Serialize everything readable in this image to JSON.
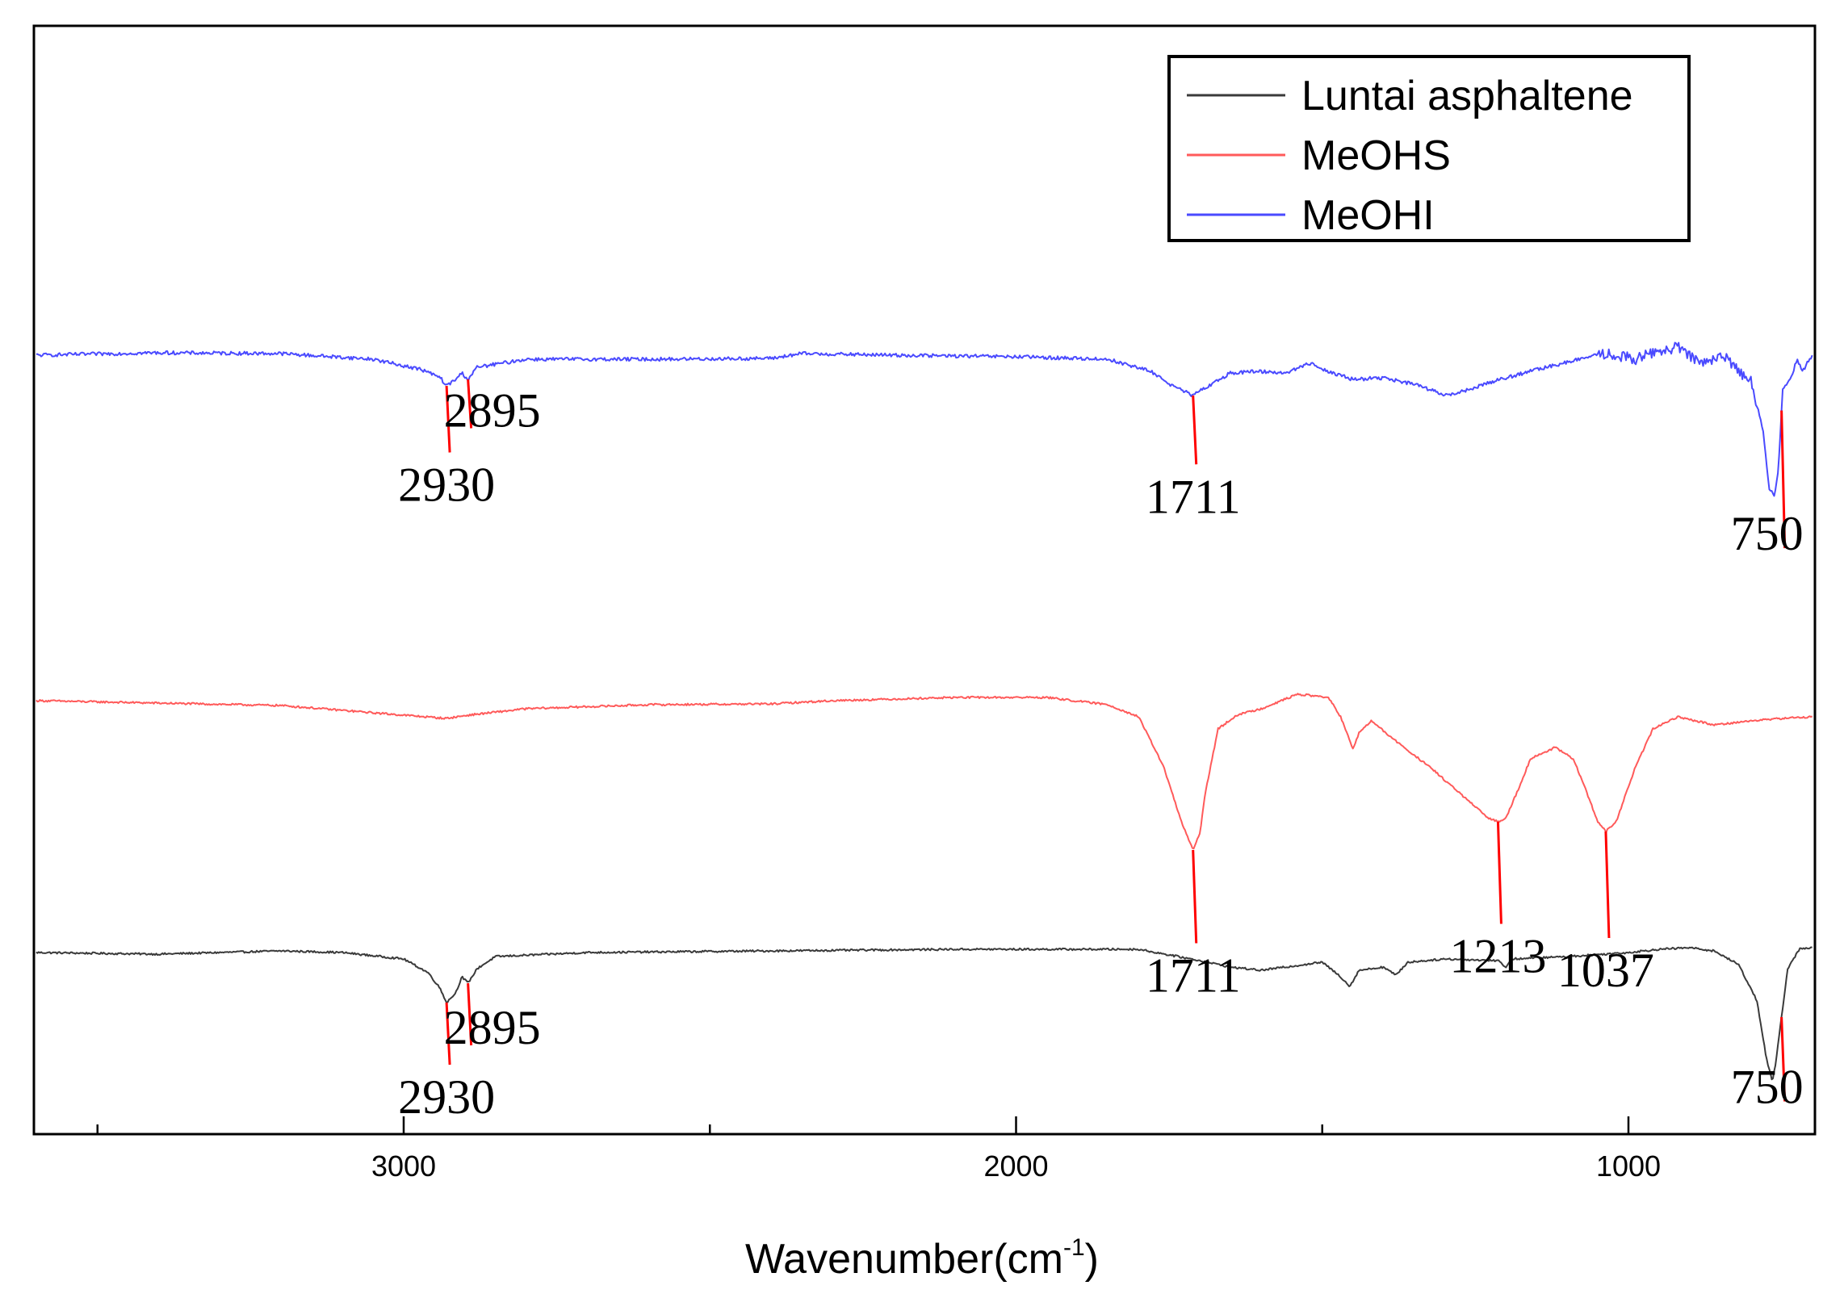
{
  "chart_data": {
    "type": "line",
    "xlabel": "Wavenumber(cm",
    "xlabel_sup": "-1",
    "xlabel_close": ")",
    "xlim": [
      3600,
      700
    ],
    "x_reversed": true,
    "y_axis_visible": false,
    "grid": false,
    "legend_position": "top-right",
    "xticks": [
      {
        "value": 3000,
        "label": "3000"
      },
      {
        "value": 2000,
        "label": "2000"
      },
      {
        "value": 1000,
        "label": "1000"
      }
    ],
    "minor_xticks": [
      3500,
      2500,
      1500
    ],
    "series": [
      {
        "name": "Luntai asphaltene",
        "color": "#3a3a3a",
        "baseline": 1180,
        "points": [
          [
            3600,
            0
          ],
          [
            3400,
            -2
          ],
          [
            3200,
            2
          ],
          [
            3100,
            0
          ],
          [
            3000,
            -8
          ],
          [
            2960,
            -25
          ],
          [
            2940,
            -45
          ],
          [
            2930,
            -62
          ],
          [
            2915,
            -50
          ],
          [
            2905,
            -30
          ],
          [
            2895,
            -38
          ],
          [
            2880,
            -20
          ],
          [
            2850,
            -5
          ],
          [
            2700,
            0
          ],
          [
            2400,
            2
          ],
          [
            2100,
            4
          ],
          [
            1800,
            4
          ],
          [
            1700,
            -10
          ],
          [
            1650,
            -18
          ],
          [
            1600,
            -22
          ],
          [
            1560,
            -18
          ],
          [
            1500,
            -12
          ],
          [
            1470,
            -30
          ],
          [
            1455,
            -42
          ],
          [
            1440,
            -22
          ],
          [
            1400,
            -18
          ],
          [
            1380,
            -28
          ],
          [
            1360,
            -12
          ],
          [
            1300,
            -8
          ],
          [
            1213,
            -10
          ],
          [
            1200,
            -18
          ],
          [
            1190,
            -8
          ],
          [
            1100,
            -5
          ],
          [
            1000,
            0
          ],
          [
            950,
            4
          ],
          [
            900,
            6
          ],
          [
            860,
            2
          ],
          [
            820,
            -15
          ],
          [
            790,
            -60
          ],
          [
            775,
            -130
          ],
          [
            765,
            -160
          ],
          [
            760,
            -140
          ],
          [
            750,
            -80
          ],
          [
            740,
            -20
          ],
          [
            720,
            5
          ],
          [
            700,
            6
          ]
        ]
      },
      {
        "name": "MeOHS",
        "color": "#ff5a5a",
        "baseline": 868,
        "points": [
          [
            3600,
            0
          ],
          [
            3400,
            -3
          ],
          [
            3200,
            -6
          ],
          [
            3050,
            -15
          ],
          [
            2930,
            -22
          ],
          [
            2895,
            -18
          ],
          [
            2800,
            -10
          ],
          [
            2600,
            -5
          ],
          [
            2400,
            -4
          ],
          [
            2300,
            0
          ],
          [
            2100,
            4
          ],
          [
            1950,
            4
          ],
          [
            1850,
            -5
          ],
          [
            1800,
            -20
          ],
          [
            1760,
            -80
          ],
          [
            1730,
            -150
          ],
          [
            1711,
            -185
          ],
          [
            1700,
            -165
          ],
          [
            1690,
            -110
          ],
          [
            1670,
            -35
          ],
          [
            1640,
            -18
          ],
          [
            1600,
            -10
          ],
          [
            1540,
            8
          ],
          [
            1490,
            4
          ],
          [
            1470,
            -20
          ],
          [
            1450,
            -60
          ],
          [
            1440,
            -40
          ],
          [
            1420,
            -25
          ],
          [
            1380,
            -50
          ],
          [
            1320,
            -85
          ],
          [
            1260,
            -125
          ],
          [
            1230,
            -145
          ],
          [
            1213,
            -150
          ],
          [
            1200,
            -145
          ],
          [
            1180,
            -110
          ],
          [
            1160,
            -72
          ],
          [
            1120,
            -58
          ],
          [
            1090,
            -72
          ],
          [
            1070,
            -110
          ],
          [
            1050,
            -150
          ],
          [
            1037,
            -162
          ],
          [
            1020,
            -150
          ],
          [
            990,
            -85
          ],
          [
            960,
            -35
          ],
          [
            920,
            -20
          ],
          [
            860,
            -30
          ],
          [
            800,
            -25
          ],
          [
            750,
            -22
          ],
          [
            700,
            -20
          ]
        ]
      },
      {
        "name": "MeOHI",
        "color": "#4a4aff",
        "baseline": 440,
        "points": [
          [
            3600,
            0
          ],
          [
            3400,
            3
          ],
          [
            3200,
            2
          ],
          [
            3050,
            -5
          ],
          [
            2970,
            -18
          ],
          [
            2940,
            -28
          ],
          [
            2930,
            -38
          ],
          [
            2915,
            -30
          ],
          [
            2905,
            -22
          ],
          [
            2895,
            -30
          ],
          [
            2880,
            -15
          ],
          [
            2800,
            -5
          ],
          [
            2600,
            -5
          ],
          [
            2400,
            -4
          ],
          [
            2350,
            2
          ],
          [
            2200,
            0
          ],
          [
            2000,
            -2
          ],
          [
            1850,
            -5
          ],
          [
            1780,
            -20
          ],
          [
            1740,
            -40
          ],
          [
            1711,
            -50
          ],
          [
            1690,
            -40
          ],
          [
            1650,
            -22
          ],
          [
            1600,
            -20
          ],
          [
            1560,
            -22
          ],
          [
            1520,
            -10
          ],
          [
            1490,
            -20
          ],
          [
            1450,
            -30
          ],
          [
            1400,
            -28
          ],
          [
            1340,
            -38
          ],
          [
            1300,
            -50
          ],
          [
            1270,
            -45
          ],
          [
            1220,
            -32
          ],
          [
            1150,
            -18
          ],
          [
            1080,
            -5
          ],
          [
            1040,
            2
          ],
          [
            990,
            -5
          ],
          [
            950,
            5
          ],
          [
            920,
            10
          ],
          [
            900,
            -2
          ],
          [
            870,
            -8
          ],
          [
            840,
            -2
          ],
          [
            820,
            -20
          ],
          [
            800,
            -30
          ],
          [
            780,
            -95
          ],
          [
            770,
            -165
          ],
          [
            762,
            -175
          ],
          [
            755,
            -140
          ],
          [
            748,
            -40
          ],
          [
            735,
            -30
          ],
          [
            725,
            -5
          ],
          [
            715,
            -20
          ],
          [
            705,
            -5
          ],
          [
            700,
            -2
          ]
        ]
      }
    ],
    "annotations": [
      {
        "series": "MeOHI",
        "wavenumber": 2930,
        "label": "2930",
        "line_depth": 150,
        "label_side": "below"
      },
      {
        "series": "MeOHI",
        "wavenumber": 2895,
        "label": "2895",
        "line_depth": 110,
        "label_side": "right"
      },
      {
        "series": "MeOHI",
        "wavenumber": 1711,
        "label": "1711",
        "line_depth": 155,
        "label_side": "below"
      },
      {
        "series": "MeOHI",
        "wavenumber": 750,
        "label": "750",
        "line_depth": 310,
        "label_side": "left"
      },
      {
        "series": "MeOHS",
        "wavenumber": 1711,
        "label": "1711",
        "line_depth": 210,
        "label_side": "below"
      },
      {
        "series": "MeOHS",
        "wavenumber": 1213,
        "label": "1213",
        "line_depth": 230,
        "label_side": "below"
      },
      {
        "series": "MeOHS",
        "wavenumber": 1037,
        "label": "1037",
        "line_depth": 240,
        "label_side": "below"
      },
      {
        "series": "Luntai asphaltene",
        "wavenumber": 2930,
        "label": "2930",
        "line_depth": 140,
        "label_side": "below"
      },
      {
        "series": "Luntai asphaltene",
        "wavenumber": 2895,
        "label": "2895",
        "line_depth": 140,
        "label_side": "right"
      },
      {
        "series": "Luntai asphaltene",
        "wavenumber": 750,
        "label": "750",
        "line_depth": 190,
        "label_side": "left"
      }
    ]
  }
}
